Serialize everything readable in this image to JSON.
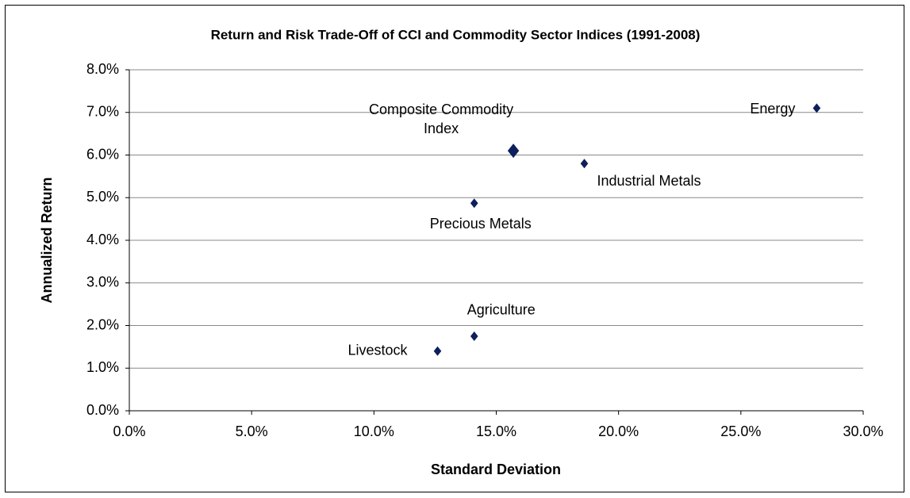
{
  "chart_data": {
    "type": "scatter",
    "title": "Return and Risk Trade-Off of CCI and Commodity Sector Indices (1991-2008)",
    "x_label": "Standard Deviation",
    "y_label": "Annualized Return",
    "color": "#0d1f5c",
    "grid": true,
    "xlim": [
      0,
      30
    ],
    "ylim": [
      0,
      8
    ],
    "xticks": [
      {
        "value": 0,
        "label": "0.0%"
      },
      {
        "value": 5,
        "label": "5.0%"
      },
      {
        "value": 10,
        "label": "10.0%"
      },
      {
        "value": 15,
        "label": "15.0%"
      },
      {
        "value": 20,
        "label": "20.0%"
      },
      {
        "value": 25,
        "label": "25.0%"
      },
      {
        "value": 30,
        "label": "30.0%"
      }
    ],
    "yticks": [
      {
        "value": 0,
        "label": "0.0%"
      },
      {
        "value": 1,
        "label": "1.0%"
      },
      {
        "value": 2,
        "label": "2.0%"
      },
      {
        "value": 3,
        "label": "3.0%"
      },
      {
        "value": 4,
        "label": "4.0%"
      },
      {
        "value": 5,
        "label": "5.0%"
      },
      {
        "value": 6,
        "label": "6.0%"
      },
      {
        "value": 7,
        "label": "7.0%"
      },
      {
        "value": 8,
        "label": "8.0%"
      }
    ],
    "points": [
      {
        "label": "Energy",
        "x": 28.1,
        "y": 7.1,
        "marker_size": 6
      },
      {
        "label": "Composite Commodity Index",
        "x": 15.7,
        "y": 6.1,
        "marker_size": 9
      },
      {
        "label": "Industrial Metals",
        "x": 18.6,
        "y": 5.8,
        "marker_size": 6
      },
      {
        "label": "Precious Metals",
        "x": 14.1,
        "y": 4.87,
        "marker_size": 6
      },
      {
        "label": "Agriculture",
        "x": 14.1,
        "y": 1.75,
        "marker_size": 6
      },
      {
        "label": "Livestock",
        "x": 12.6,
        "y": 1.4,
        "marker_size": 6
      }
    ]
  }
}
